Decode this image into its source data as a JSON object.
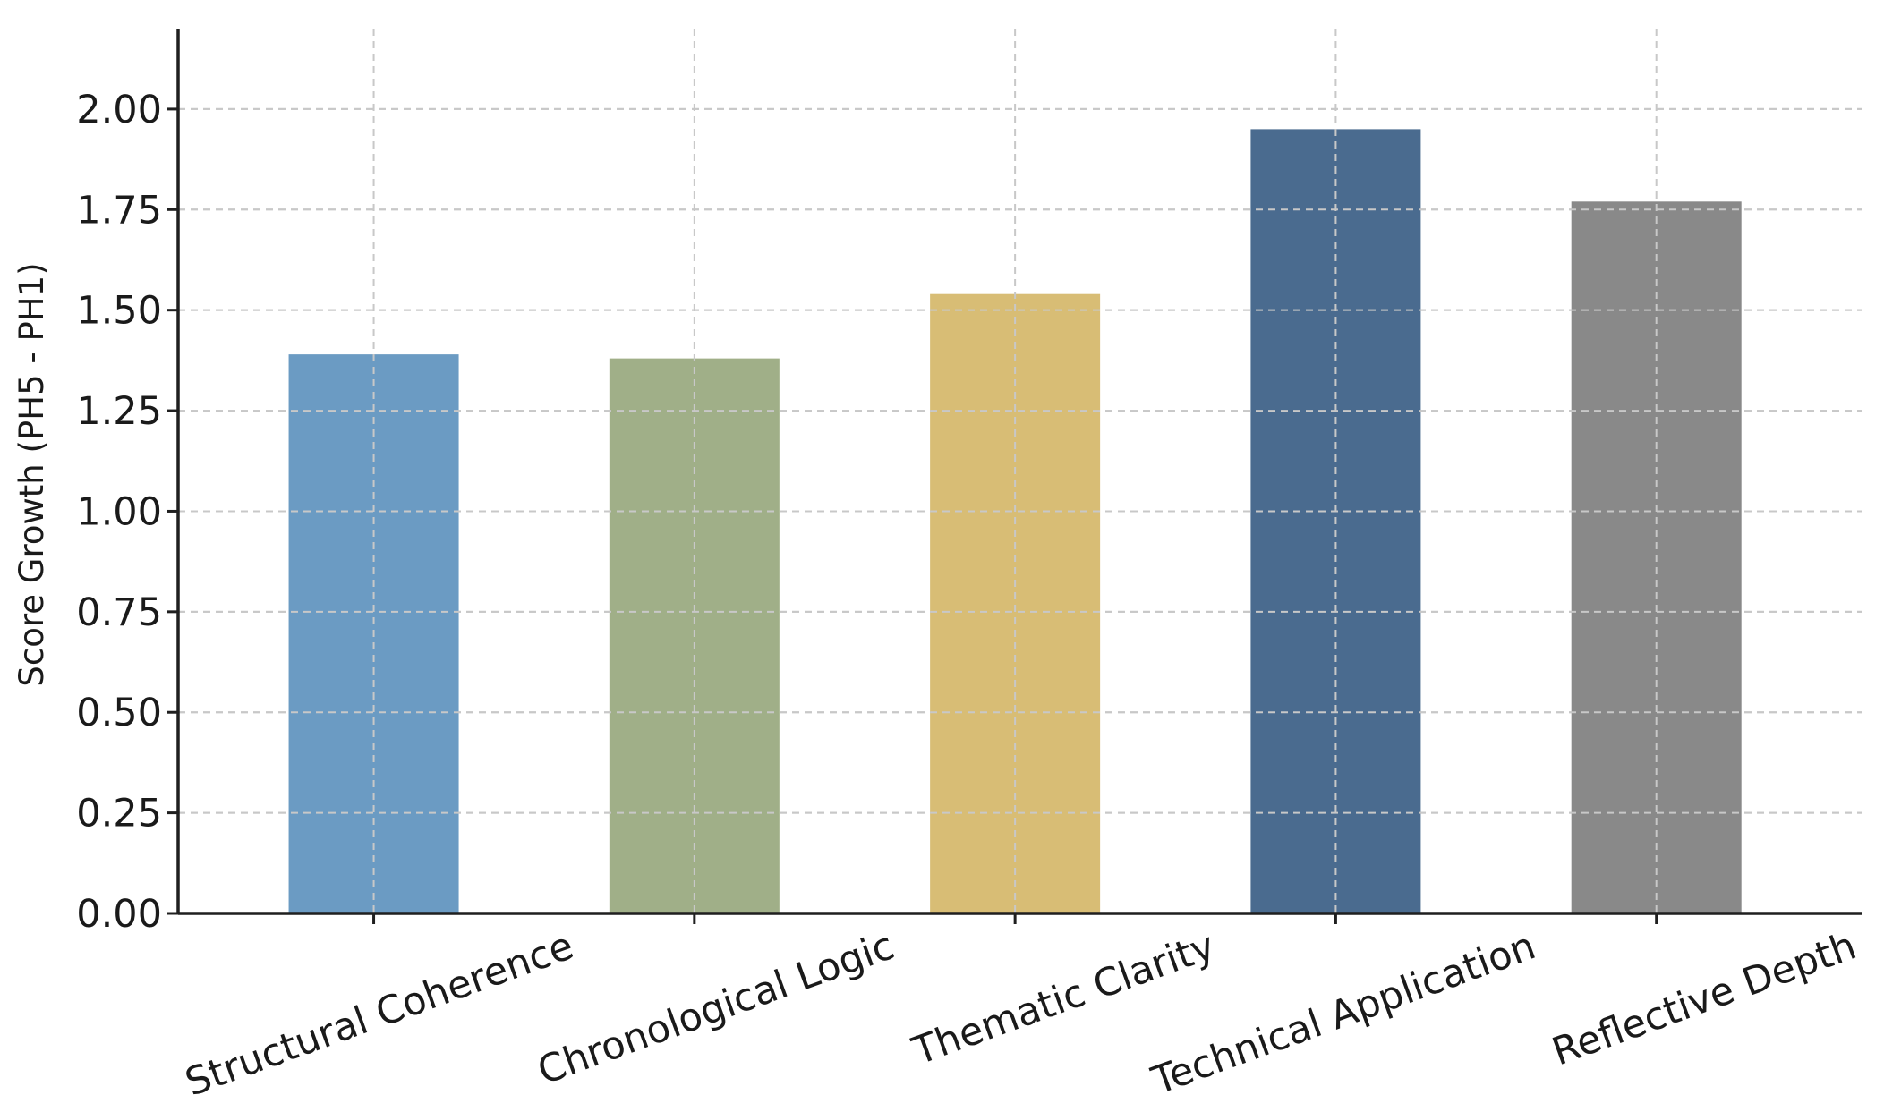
{
  "chart_data": {
    "type": "bar",
    "title": "",
    "xlabel": "",
    "ylabel": "Score Growth (PH5 - PH1)",
    "categories": [
      "Structural Coherence",
      "Chronological Logic",
      "Thematic Clarity",
      "Technical Application",
      "Reflective Depth"
    ],
    "values": [
      1.39,
      1.38,
      1.54,
      1.95,
      1.77
    ],
    "colors": [
      "#6b9bc3",
      "#a0af88",
      "#d8bd75",
      "#4a6b8f",
      "#898989"
    ],
    "ylim": [
      0,
      2.2
    ],
    "yticks": [
      "0.00",
      "0.25",
      "0.50",
      "0.75",
      "1.00",
      "1.25",
      "1.50",
      "1.75",
      "2.00"
    ],
    "grid": true,
    "legend": "none"
  }
}
